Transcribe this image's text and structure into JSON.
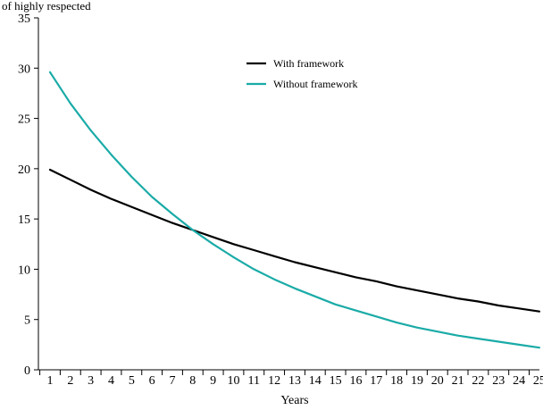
{
  "chart_data": {
    "type": "line",
    "top_label": "of highly respected",
    "xlabel": "Years",
    "ylabel": "",
    "x": [
      1,
      2,
      3,
      4,
      5,
      6,
      7,
      8,
      9,
      10,
      11,
      12,
      13,
      14,
      15,
      16,
      17,
      18,
      19,
      20,
      21,
      22,
      23,
      24,
      25
    ],
    "x_ticks": [
      "1",
      "2",
      "3",
      "4",
      "5",
      "6",
      "7",
      "8",
      "9",
      "10",
      "11",
      "12",
      "13",
      "14",
      "15",
      "16",
      "17",
      "18",
      "19",
      "20",
      "21",
      "22",
      "23",
      "24",
      "25"
    ],
    "ylim": [
      0,
      35
    ],
    "y_ticks": [
      "0",
      "5",
      "10",
      "15",
      "20",
      "25",
      "30",
      "35"
    ],
    "grid": false,
    "legend_position": "top-center",
    "series": [
      {
        "name": "With framework",
        "color": "#000000",
        "values": [
          19.9,
          18.9,
          17.9,
          17.0,
          16.2,
          15.4,
          14.6,
          13.9,
          13.2,
          12.5,
          11.9,
          11.3,
          10.7,
          10.2,
          9.7,
          9.2,
          8.8,
          8.3,
          7.9,
          7.5,
          7.1,
          6.8,
          6.4,
          6.1,
          5.8
        ]
      },
      {
        "name": "Without framework",
        "color": "#1aaba7",
        "values": [
          29.6,
          26.5,
          23.8,
          21.4,
          19.2,
          17.2,
          15.5,
          13.9,
          12.5,
          11.2,
          10.0,
          9.0,
          8.1,
          7.3,
          6.5,
          5.9,
          5.3,
          4.7,
          4.2,
          3.8,
          3.4,
          3.1,
          2.8,
          2.5,
          2.2
        ]
      }
    ]
  }
}
